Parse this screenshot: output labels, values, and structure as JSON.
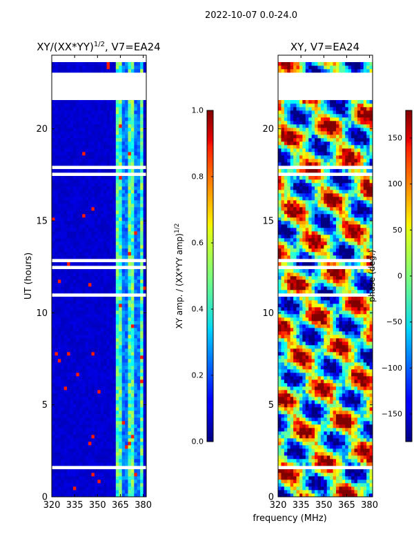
{
  "suptitle": "2022-10-07 0.0-24.0",
  "chart_data": [
    {
      "type": "heatmap",
      "title_prefix": "XY/(XX*YY)",
      "title_exp": "1/2",
      "title_suffix": ", V7=EA24",
      "xlabel": "",
      "ylabel": "UT (hours)",
      "xlim": [
        320,
        382
      ],
      "ylim": [
        0,
        24
      ],
      "xticks": [
        "320",
        "335",
        "350",
        "365",
        "380"
      ],
      "xtick_values": [
        320,
        335,
        350,
        365,
        380
      ],
      "yticks": [
        "0",
        "5",
        "10",
        "15",
        "20"
      ],
      "ytick_values": [
        0,
        5,
        10,
        15,
        20
      ],
      "colorbar": {
        "label_prefix": "XY amp. / (XX*YY amp)",
        "label_exp": "1/2",
        "range": [
          0.0,
          1.0
        ],
        "ticks": [
          "0.0",
          "0.2",
          "0.4",
          "0.6",
          "0.8",
          "1.0"
        ],
        "tick_values": [
          0.0,
          0.2,
          0.4,
          0.6,
          0.8,
          1.0
        ]
      }
    },
    {
      "type": "heatmap",
      "title": "XY, V7=EA24",
      "xlabel": "frequency (MHz)",
      "ylabel": "",
      "xlim": [
        320,
        382
      ],
      "ylim": [
        0,
        24
      ],
      "xticks": [
        "320",
        "335",
        "350",
        "365",
        "380"
      ],
      "xtick_values": [
        320,
        335,
        350,
        365,
        380
      ],
      "yticks": [
        "0",
        "5",
        "10",
        "15",
        "20"
      ],
      "ytick_values": [
        0,
        5,
        10,
        15,
        20
      ],
      "colorbar": {
        "label": "phase (deg.)",
        "range": [
          -180,
          180
        ],
        "ticks": [
          "−150",
          "−100",
          "−50",
          "0",
          "50",
          "100",
          "150"
        ],
        "tick_values": [
          -150,
          -100,
          -50,
          0,
          50,
          100,
          150
        ]
      }
    }
  ]
}
